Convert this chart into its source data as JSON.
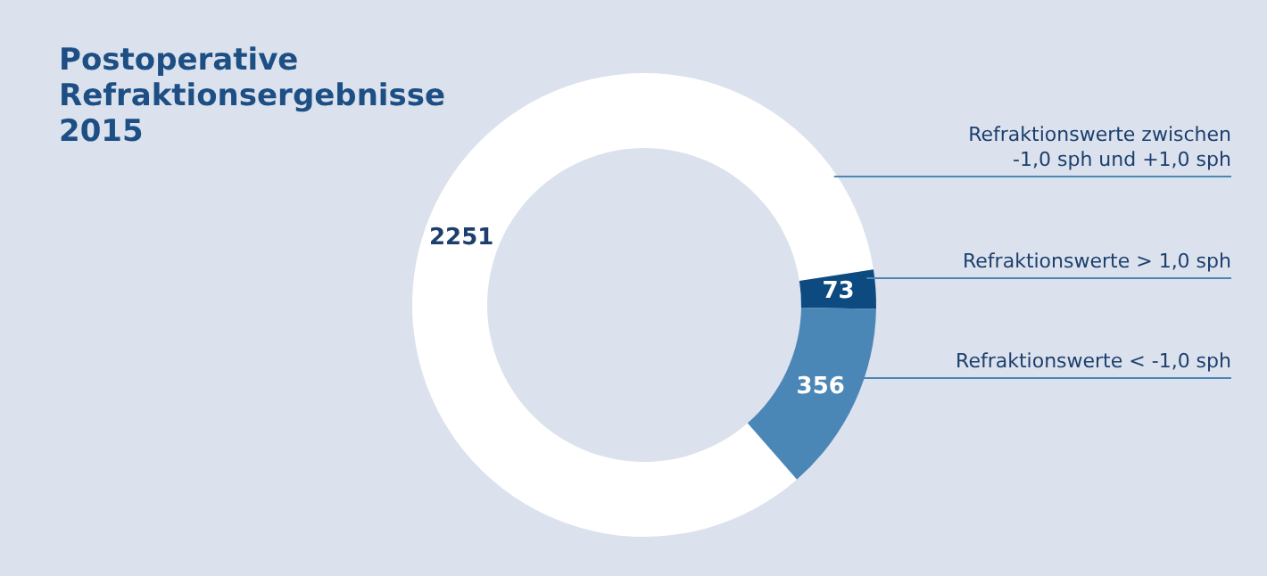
{
  "chart_data": {
    "type": "donut",
    "title": "Postoperative\nRefraktionsergebnisse\n2015",
    "categories": [
      "Refraktionswerte zwischen\n-1,0 sph und +1,0 sph",
      "Refraktionswerte > 1,0 sph",
      "Refraktionswerte < -1,0 sph"
    ],
    "values": [
      2251,
      73,
      356
    ],
    "colors": [
      "#ffffff",
      "#0d4a80",
      "#4b87b6"
    ],
    "data_labels": true
  }
}
